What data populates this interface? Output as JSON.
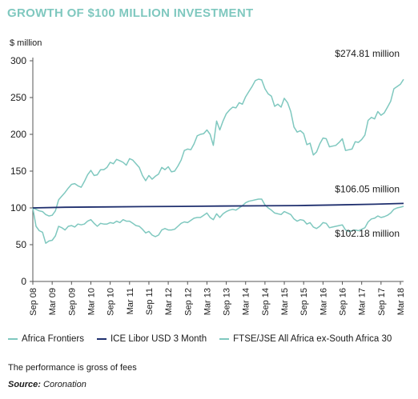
{
  "title": "GROWTH OF $100 MILLION INVESTMENT",
  "note": "The performance is gross of fees",
  "source": {
    "label": "Source:",
    "name": "Coronation"
  },
  "colors": {
    "africa_frontiers": "#7fc8bf",
    "ice_libor": "#1f2f6e",
    "ftse_jse": "#7fc8bf",
    "title": "#7fc8bf",
    "axis": "#555555"
  },
  "chart_data": {
    "type": "line",
    "ylabel": "$ million",
    "ylim": [
      0,
      300
    ],
    "yticks": [
      0,
      50,
      100,
      150,
      200,
      250,
      300
    ],
    "xlim": [
      2008.667,
      2018.25
    ],
    "xticks": [
      {
        "label": "Sep 08",
        "x": 2008.667
      },
      {
        "label": "Mar 09",
        "x": 2009.167
      },
      {
        "label": "Sep 09",
        "x": 2009.667
      },
      {
        "label": "Mar 10",
        "x": 2010.167
      },
      {
        "label": "Sep 10",
        "x": 2010.667
      },
      {
        "label": "Mar 11",
        "x": 2011.167
      },
      {
        "label": "Sep 11",
        "x": 2011.667
      },
      {
        "label": "Mar 12",
        "x": 2012.167
      },
      {
        "label": "Sep 12",
        "x": 2012.667
      },
      {
        "label": "Mar 13",
        "x": 2013.167
      },
      {
        "label": "Sep 13",
        "x": 2013.667
      },
      {
        "label": "Mar 14",
        "x": 2014.167
      },
      {
        "label": "Sep 14",
        "x": 2014.667
      },
      {
        "label": "Mar 15",
        "x": 2015.167
      },
      {
        "label": "Sep 15",
        "x": 2015.667
      },
      {
        "label": "Mar 16",
        "x": 2016.167
      },
      {
        "label": "Sep 16",
        "x": 2016.667
      },
      {
        "label": "Mar 17",
        "x": 2017.167
      },
      {
        "label": "Sep 17",
        "x": 2017.667
      },
      {
        "label": "Mar 18",
        "x": 2018.167
      }
    ],
    "grid": false,
    "legend": "bottom",
    "series": [
      {
        "name": "Africa Frontiers",
        "color": "#7fc8bf",
        "end_label": "274.81 million",
        "points": [
          [
            2008.667,
            100
          ],
          [
            2008.75,
            98
          ],
          [
            2008.833,
            96
          ],
          [
            2008.917,
            95
          ],
          [
            2009.0,
            91
          ],
          [
            2009.083,
            89
          ],
          [
            2009.167,
            90
          ],
          [
            2009.25,
            96
          ],
          [
            2009.333,
            111
          ],
          [
            2009.417,
            116
          ],
          [
            2009.5,
            121
          ],
          [
            2009.583,
            127
          ],
          [
            2009.667,
            132
          ],
          [
            2009.75,
            133
          ],
          [
            2009.833,
            130
          ],
          [
            2009.917,
            128
          ],
          [
            2010.0,
            136
          ],
          [
            2010.083,
            145
          ],
          [
            2010.167,
            151
          ],
          [
            2010.25,
            144
          ],
          [
            2010.333,
            145
          ],
          [
            2010.417,
            152
          ],
          [
            2010.5,
            152
          ],
          [
            2010.583,
            155
          ],
          [
            2010.667,
            162
          ],
          [
            2010.75,
            160
          ],
          [
            2010.833,
            166
          ],
          [
            2010.917,
            164
          ],
          [
            2011.0,
            162
          ],
          [
            2011.083,
            158
          ],
          [
            2011.167,
            167
          ],
          [
            2011.25,
            165
          ],
          [
            2011.333,
            160
          ],
          [
            2011.417,
            155
          ],
          [
            2011.5,
            144
          ],
          [
            2011.583,
            137
          ],
          [
            2011.667,
            144
          ],
          [
            2011.75,
            139
          ],
          [
            2011.833,
            143
          ],
          [
            2011.917,
            146
          ],
          [
            2012.0,
            155
          ],
          [
            2012.083,
            152
          ],
          [
            2012.167,
            156
          ],
          [
            2012.25,
            149
          ],
          [
            2012.333,
            150
          ],
          [
            2012.417,
            157
          ],
          [
            2012.5,
            165
          ],
          [
            2012.583,
            178
          ],
          [
            2012.667,
            180
          ],
          [
            2012.75,
            179
          ],
          [
            2012.833,
            187
          ],
          [
            2012.917,
            198
          ],
          [
            2013.0,
            200
          ],
          [
            2013.083,
            201
          ],
          [
            2013.167,
            206
          ],
          [
            2013.25,
            200
          ],
          [
            2013.333,
            185
          ],
          [
            2013.417,
            218
          ],
          [
            2013.5,
            206
          ],
          [
            2013.583,
            218
          ],
          [
            2013.667,
            228
          ],
          [
            2013.75,
            233
          ],
          [
            2013.833,
            237
          ],
          [
            2013.917,
            236
          ],
          [
            2014.0,
            243
          ],
          [
            2014.083,
            241
          ],
          [
            2014.167,
            251
          ],
          [
            2014.25,
            258
          ],
          [
            2014.333,
            265
          ],
          [
            2014.417,
            273
          ],
          [
            2014.5,
            275
          ],
          [
            2014.583,
            274
          ],
          [
            2014.667,
            262
          ],
          [
            2014.75,
            255
          ],
          [
            2014.833,
            252
          ],
          [
            2014.917,
            238
          ],
          [
            2015.0,
            241
          ],
          [
            2015.083,
            237
          ],
          [
            2015.167,
            249
          ],
          [
            2015.25,
            243
          ],
          [
            2015.333,
            231
          ],
          [
            2015.417,
            210
          ],
          [
            2015.5,
            203
          ],
          [
            2015.583,
            205
          ],
          [
            2015.667,
            201
          ],
          [
            2015.75,
            186
          ],
          [
            2015.833,
            188
          ],
          [
            2015.917,
            172
          ],
          [
            2016.0,
            176
          ],
          [
            2016.083,
            187
          ],
          [
            2016.167,
            195
          ],
          [
            2016.25,
            194
          ],
          [
            2016.333,
            183
          ],
          [
            2016.417,
            184
          ],
          [
            2016.5,
            185
          ],
          [
            2016.583,
            189
          ],
          [
            2016.667,
            194
          ],
          [
            2016.75,
            178
          ],
          [
            2016.833,
            179
          ],
          [
            2016.917,
            180
          ],
          [
            2017.0,
            190
          ],
          [
            2017.083,
            189
          ],
          [
            2017.167,
            193
          ],
          [
            2017.25,
            199
          ],
          [
            2017.333,
            219
          ],
          [
            2017.417,
            223
          ],
          [
            2017.5,
            221
          ],
          [
            2017.583,
            231
          ],
          [
            2017.667,
            226
          ],
          [
            2017.75,
            229
          ],
          [
            2017.833,
            237
          ],
          [
            2017.917,
            245
          ],
          [
            2018.0,
            262
          ],
          [
            2018.083,
            265
          ],
          [
            2018.167,
            268
          ],
          [
            2018.25,
            274.81
          ]
        ]
      },
      {
        "name": "ICE Libor USD 3 Month",
        "color": "#1f2f6e",
        "end_label": "106.05 million",
        "points": [
          [
            2008.667,
            100
          ],
          [
            2009.5,
            100.9
          ],
          [
            2010.5,
            101.3
          ],
          [
            2011.5,
            101.7
          ],
          [
            2012.5,
            102.1
          ],
          [
            2013.5,
            102.5
          ],
          [
            2014.5,
            102.8
          ],
          [
            2015.5,
            103.2
          ],
          [
            2016.5,
            104.0
          ],
          [
            2017.5,
            105.0
          ],
          [
            2018.25,
            106.05
          ]
        ]
      },
      {
        "name": "FTSE/JSE All Africa ex-South Africa 30",
        "color": "#7fc8bf",
        "end_label": "102.18 million",
        "points": [
          [
            2008.667,
            100
          ],
          [
            2008.75,
            75
          ],
          [
            2008.833,
            69
          ],
          [
            2008.917,
            67
          ],
          [
            2009.0,
            52
          ],
          [
            2009.083,
            55
          ],
          [
            2009.167,
            56
          ],
          [
            2009.25,
            62
          ],
          [
            2009.333,
            75
          ],
          [
            2009.417,
            73
          ],
          [
            2009.5,
            70
          ],
          [
            2009.583,
            75
          ],
          [
            2009.667,
            76
          ],
          [
            2009.75,
            74
          ],
          [
            2009.833,
            78
          ],
          [
            2009.917,
            77
          ],
          [
            2010.0,
            78
          ],
          [
            2010.083,
            82
          ],
          [
            2010.167,
            84
          ],
          [
            2010.25,
            79
          ],
          [
            2010.333,
            75
          ],
          [
            2010.417,
            79
          ],
          [
            2010.5,
            78
          ],
          [
            2010.583,
            78
          ],
          [
            2010.667,
            80
          ],
          [
            2010.75,
            79
          ],
          [
            2010.833,
            82
          ],
          [
            2010.917,
            80
          ],
          [
            2011.0,
            84
          ],
          [
            2011.083,
            82
          ],
          [
            2011.167,
            82
          ],
          [
            2011.25,
            79
          ],
          [
            2011.333,
            76
          ],
          [
            2011.417,
            75
          ],
          [
            2011.5,
            71
          ],
          [
            2011.583,
            66
          ],
          [
            2011.667,
            68
          ],
          [
            2011.75,
            63
          ],
          [
            2011.833,
            61
          ],
          [
            2011.917,
            63
          ],
          [
            2012.0,
            70
          ],
          [
            2012.083,
            72
          ],
          [
            2012.167,
            70
          ],
          [
            2012.25,
            70
          ],
          [
            2012.333,
            71
          ],
          [
            2012.417,
            75
          ],
          [
            2012.5,
            79
          ],
          [
            2012.583,
            81
          ],
          [
            2012.667,
            80
          ],
          [
            2012.75,
            83
          ],
          [
            2012.833,
            86
          ],
          [
            2012.917,
            87
          ],
          [
            2013.0,
            87
          ],
          [
            2013.083,
            90
          ],
          [
            2013.167,
            93
          ],
          [
            2013.25,
            87
          ],
          [
            2013.333,
            84
          ],
          [
            2013.417,
            92
          ],
          [
            2013.5,
            87
          ],
          [
            2013.583,
            92
          ],
          [
            2013.667,
            95
          ],
          [
            2013.75,
            97
          ],
          [
            2013.833,
            98
          ],
          [
            2013.917,
            97
          ],
          [
            2014.0,
            100
          ],
          [
            2014.083,
            103
          ],
          [
            2014.167,
            107
          ],
          [
            2014.25,
            109
          ],
          [
            2014.333,
            110
          ],
          [
            2014.417,
            111
          ],
          [
            2014.5,
            112
          ],
          [
            2014.583,
            112
          ],
          [
            2014.667,
            104
          ],
          [
            2014.75,
            100
          ],
          [
            2014.833,
            97
          ],
          [
            2014.917,
            93
          ],
          [
            2015.0,
            92
          ],
          [
            2015.083,
            91
          ],
          [
            2015.167,
            95
          ],
          [
            2015.25,
            93
          ],
          [
            2015.333,
            91
          ],
          [
            2015.417,
            85
          ],
          [
            2015.5,
            82
          ],
          [
            2015.583,
            84
          ],
          [
            2015.667,
            83
          ],
          [
            2015.75,
            78
          ],
          [
            2015.833,
            80
          ],
          [
            2015.917,
            74
          ],
          [
            2016.0,
            72
          ],
          [
            2016.083,
            75
          ],
          [
            2016.167,
            80
          ],
          [
            2016.25,
            79
          ],
          [
            2016.333,
            73
          ],
          [
            2016.417,
            74
          ],
          [
            2016.5,
            75
          ],
          [
            2016.583,
            76
          ],
          [
            2016.667,
            77
          ],
          [
            2016.75,
            70
          ],
          [
            2016.833,
            68
          ],
          [
            2016.917,
            69
          ],
          [
            2017.0,
            70
          ],
          [
            2017.083,
            69
          ],
          [
            2017.167,
            71
          ],
          [
            2017.25,
            73
          ],
          [
            2017.333,
            81
          ],
          [
            2017.417,
            85
          ],
          [
            2017.5,
            86
          ],
          [
            2017.583,
            89
          ],
          [
            2017.667,
            87
          ],
          [
            2017.75,
            88
          ],
          [
            2017.833,
            90
          ],
          [
            2017.917,
            93
          ],
          [
            2018.0,
            98
          ],
          [
            2018.083,
            100
          ],
          [
            2018.167,
            101
          ],
          [
            2018.25,
            102.18
          ]
        ]
      }
    ],
    "annotations": [
      {
        "text": "$274.81 million"
      },
      {
        "text": "$106.05 million"
      },
      {
        "text": "$102.18 million"
      }
    ]
  }
}
